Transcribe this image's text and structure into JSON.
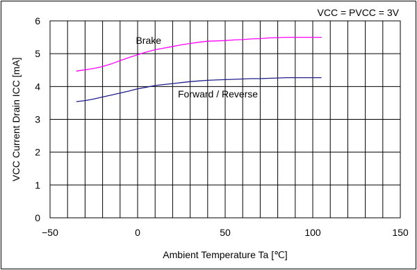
{
  "chart_data": {
    "type": "line",
    "title": "",
    "condition_note": "VCC = PVCC =  3V",
    "xlabel": "Ambient Temperature Ta [℃]",
    "ylabel": "VCC Current Drain ICC [mA]",
    "xlim": [
      -50,
      150
    ],
    "ylim": [
      0,
      6
    ],
    "x_ticks": [
      -50,
      0,
      50,
      100,
      150
    ],
    "x_tick_labels": [
      "−50",
      "0",
      "50",
      "100",
      "150"
    ],
    "y_ticks": [
      0,
      1,
      2,
      3,
      4,
      5,
      6
    ],
    "y_tick_labels": [
      "0",
      "1",
      "2",
      "3",
      "4",
      "5",
      "6"
    ],
    "grid": true,
    "legend": "none",
    "series": [
      {
        "name": "Brake",
        "color": "#ff00ff",
        "x": [
          -35,
          -30,
          -25,
          -20,
          -15,
          -10,
          -5,
          0,
          5,
          10,
          15,
          20,
          25,
          30,
          35,
          40,
          45,
          50,
          55,
          60,
          65,
          70,
          75,
          80,
          85,
          90,
          95,
          100,
          105
        ],
        "y": [
          4.47,
          4.51,
          4.55,
          4.61,
          4.69,
          4.79,
          4.88,
          4.97,
          5.05,
          5.12,
          5.17,
          5.22,
          5.27,
          5.31,
          5.35,
          5.38,
          5.39,
          5.4,
          5.42,
          5.43,
          5.45,
          5.46,
          5.48,
          5.49,
          5.5,
          5.5,
          5.5,
          5.5,
          5.5
        ]
      },
      {
        "name": "Forward / Reverse",
        "color": "#1e1e8c",
        "x": [
          -35,
          -30,
          -25,
          -20,
          -15,
          -10,
          -5,
          0,
          5,
          10,
          15,
          20,
          25,
          30,
          35,
          40,
          45,
          50,
          55,
          60,
          65,
          70,
          75,
          80,
          85,
          90,
          95,
          100,
          105
        ],
        "y": [
          3.54,
          3.57,
          3.62,
          3.68,
          3.74,
          3.8,
          3.86,
          3.93,
          3.98,
          4.03,
          4.06,
          4.09,
          4.12,
          4.15,
          4.17,
          4.19,
          4.2,
          4.21,
          4.22,
          4.23,
          4.24,
          4.24,
          4.25,
          4.26,
          4.27,
          4.27,
          4.27,
          4.27,
          4.27
        ]
      }
    ],
    "annotations": [
      {
        "text": "Brake",
        "series": "Brake"
      },
      {
        "text": "Forward / Reverse",
        "series": "Forward / Reverse"
      }
    ]
  }
}
